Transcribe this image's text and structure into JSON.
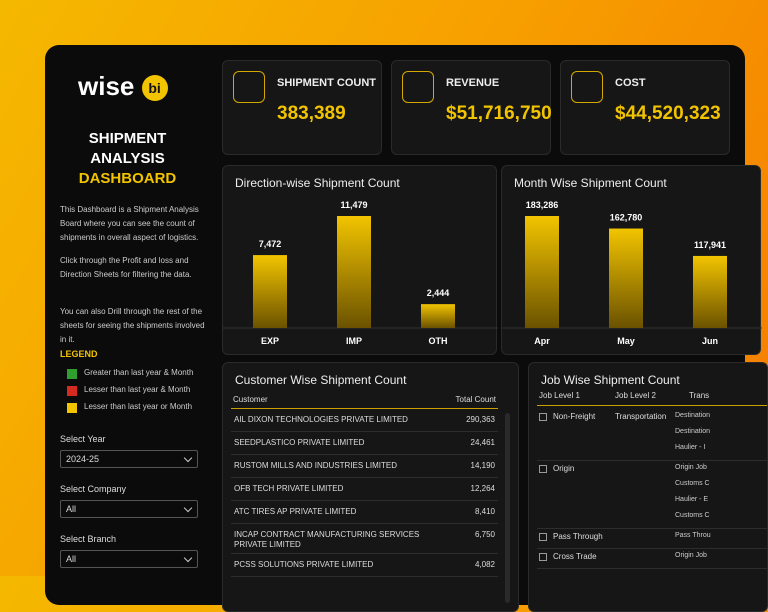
{
  "brand": {
    "word": "wise",
    "badge": "bi"
  },
  "sidebar": {
    "title": [
      "SHIPMENT",
      "ANALYSIS",
      "DASHBOARD"
    ],
    "paragraphs": [
      "This Dashboard is a Shipment Analysis Board where you can see the count of shipments in overall aspect of logistics.",
      "Click through the Profit and loss and Direction Sheets for filtering the data.",
      "You can also Drill through the rest of the sheets for seeing the shipments involved in it."
    ],
    "legend": {
      "title": "LEGEND",
      "items": [
        {
          "label": "Greater than last year & Month",
          "color": "#2f9e2f"
        },
        {
          "label": "Lesser than last year & Month",
          "color": "#d42a1f"
        },
        {
          "label": "Lesser than last year or Month",
          "color": "#f2c400"
        }
      ]
    },
    "filters": [
      {
        "label": "Select Year",
        "value": "2024-25"
      },
      {
        "label": "Select Company",
        "value": "All"
      },
      {
        "label": "Select Branch",
        "value": "All"
      }
    ]
  },
  "kpis": [
    {
      "label": "SHIPMENT COUNT",
      "value": "383,389"
    },
    {
      "label": "REVENUE",
      "value": "$51,716,750"
    },
    {
      "label": "COST",
      "value": "$44,520,323"
    }
  ],
  "chart_data": [
    {
      "type": "bar",
      "title": "Direction-wise Shipment Count",
      "categories": [
        "EXP",
        "IMP",
        "OTH"
      ],
      "values": [
        7472,
        11479,
        2444
      ],
      "value_labels": [
        "7,472",
        "11,479",
        "2,444"
      ],
      "color": "#f2c400"
    },
    {
      "type": "bar",
      "title": "Month Wise Shipment Count",
      "categories": [
        "Apr",
        "May",
        "Jun"
      ],
      "values": [
        183286,
        162780,
        117941
      ],
      "value_labels": [
        "183,286",
        "162,780",
        "117,941"
      ],
      "color": "#f2c400"
    }
  ],
  "customer_table": {
    "title": "Customer Wise Shipment Count",
    "columns": [
      "Customer",
      "Total Count"
    ],
    "rows": [
      [
        "AIL DIXON TECHNOLOGIES PRIVATE LIMITED",
        "290,363"
      ],
      [
        "SEEDPLASTICO PRIVATE LIMITED",
        "24,461"
      ],
      [
        "RUSTOM MILLS AND INDUSTRIES LIMITED",
        "14,190"
      ],
      [
        "OFB TECH PRIVATE LIMITED",
        "12,264"
      ],
      [
        "ATC TIRES AP PRIVATE LIMITED",
        "8,410"
      ],
      [
        "INCAP CONTRACT MANUFACTURING SERVICES PRIVATE LIMITED",
        "6,750"
      ],
      [
        "PCSS SOLUTIONS PRIVATE LIMITED",
        "4,082"
      ]
    ]
  },
  "job_table": {
    "title": "Job Wise Shipment Count",
    "columns": [
      "Job Level 1",
      "Job Level 2",
      "Trans"
    ],
    "groups": [
      {
        "level1": "Non-Freight",
        "level2": "Transportation",
        "level3": [
          "Destination",
          "Destination",
          "Haulier - I"
        ]
      },
      {
        "level1": "Origin",
        "level2": "",
        "level3": [
          "Origin Job",
          "Customs C",
          "Haulier - E",
          "Customs C"
        ]
      },
      {
        "level1": "Pass Through",
        "level2": "",
        "level3": [
          "Pass Throu"
        ]
      },
      {
        "level1": "Cross Trade",
        "level2": "",
        "level3": [
          "Origin Job"
        ]
      }
    ]
  }
}
